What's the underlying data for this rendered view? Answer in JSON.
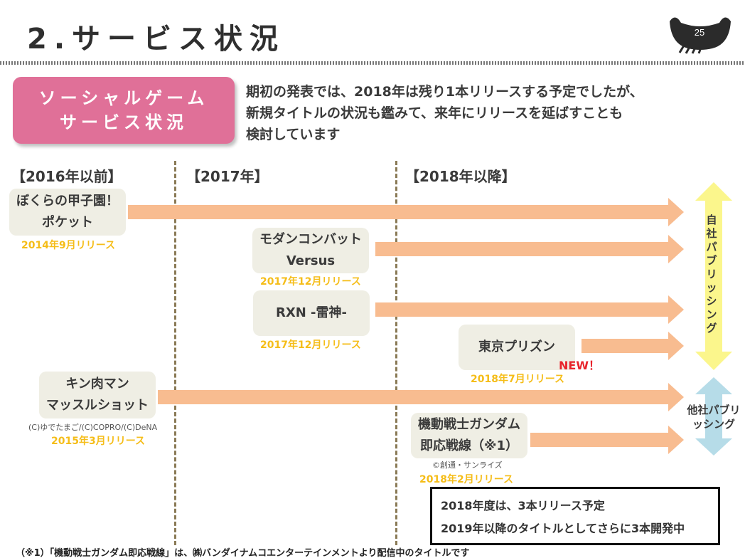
{
  "header": {
    "title": "2.サービス状況",
    "page_number": "25"
  },
  "intro": {
    "box_lines": [
      "ソーシャルゲーム",
      "サービス状況"
    ],
    "text_lines": [
      "期初の発表では、2018年は残り1本リリースする予定でしたが、",
      "新規タイトルの状況も鑑みて、来年にリリースを延ばすことも",
      "検討しています"
    ]
  },
  "periods": [
    "【2016年以前】",
    "【2017年】",
    "【2018年以降】"
  ],
  "titles": [
    {
      "lines": [
        "ぼくらの甲子園！",
        "ポケット"
      ],
      "release": "2014年9月リリース"
    },
    {
      "lines": [
        "モダンコンバット",
        "Versus"
      ],
      "release": "2017年12月リリース"
    },
    {
      "lines": [
        "RXN -雷神-"
      ],
      "release": "2017年12月リリース"
    },
    {
      "lines": [
        "東京プリズン"
      ],
      "release": "2018年7月リリース",
      "badge": "NEW！"
    },
    {
      "lines": [
        "キン肉マン",
        "マッスルショット"
      ],
      "copyright": "(C)ゆでたまご/(C)COPRO/(C)DeNA",
      "release": "2015年3月リリース"
    },
    {
      "lines": [
        "機動戦士ガンダム",
        "即応戦線（※1）"
      ],
      "copyright": "©創通・サンライズ",
      "release": "2018年2月リリース"
    }
  ],
  "publishing": {
    "self": "自社パブリッシング",
    "other_lines": [
      "他社パブリ",
      "ッシング"
    ]
  },
  "note": {
    "lines": [
      "2018年度は、3本リリース予定",
      "2019年以降のタイトルとしてさらに3本開発中"
    ]
  },
  "footnote": "（※1）「機動戦士ガンダム即応戦線」は、㈱バンダイナムコエンターテインメントより配信中のタイトルです",
  "colors": {
    "pink": "#e07098",
    "arrow": "#f8bc90",
    "release": "#f5bd18",
    "self_arrow": "#fbf68c",
    "other_arrow": "#b6dce8",
    "new": "#e8242c"
  }
}
